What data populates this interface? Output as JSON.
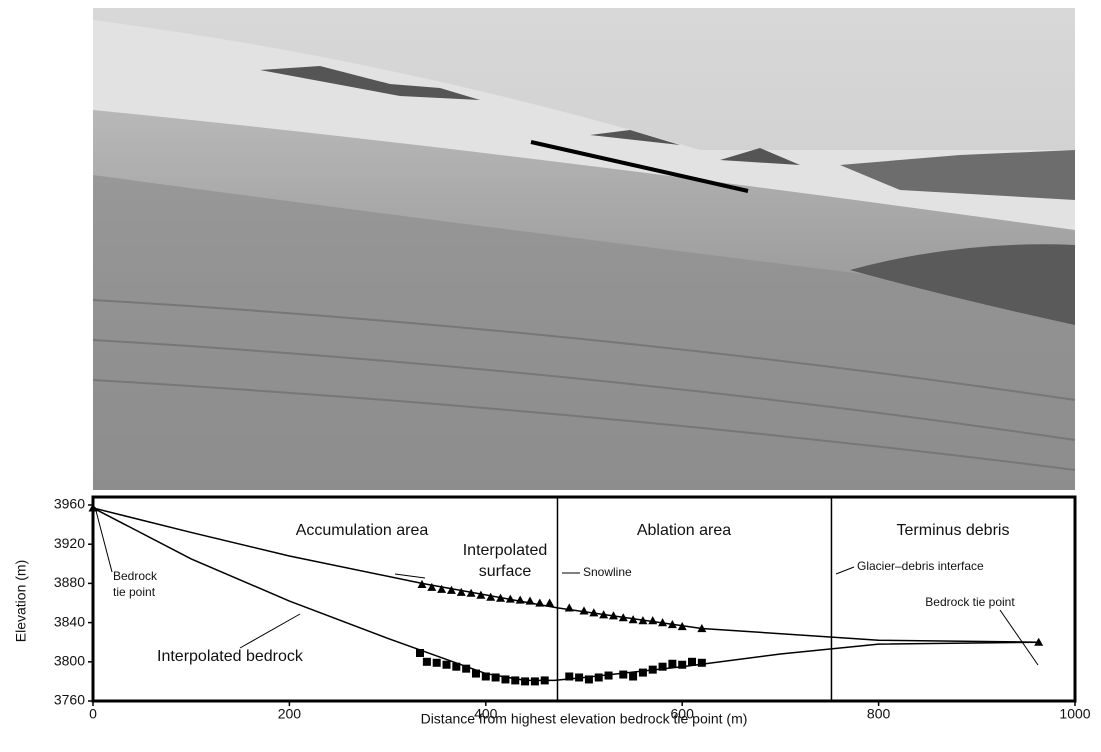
{
  "chart_data": {
    "type": "scatter",
    "xlabel": "Distance from highest elevation bedrock tie point (m)",
    "ylabel": "Elevation (m)",
    "xlim": [
      0,
      1000
    ],
    "xticks": [
      0,
      200,
      400,
      600,
      800,
      1000
    ],
    "ylim": [
      3760,
      3960
    ],
    "yticks": [
      3760,
      3800,
      3840,
      3880,
      3920,
      3960
    ],
    "vlines": [
      473,
      752
    ],
    "annotations": [
      [
        "Accumulation area"
      ],
      [
        "Ablation area"
      ],
      [
        "Terminus debris"
      ],
      [
        "Interpolated",
        "surface"
      ],
      [
        "Snowline"
      ],
      [
        "Glacier–debris interface"
      ],
      [
        "Bedrock",
        "tie point"
      ],
      [
        "Bedrock tie point"
      ],
      [
        "Interpolated bedrock"
      ]
    ],
    "series": [
      {
        "marker": "line",
        "color": "#000000",
        "x": [
          0,
          100,
          200,
          335,
          473,
          620,
          800,
          963
        ],
        "values": [
          3957,
          3932,
          3908,
          3880,
          3855,
          3834,
          3822,
          3820
        ]
      },
      {
        "marker": "line",
        "color": "#000000",
        "x": [
          0,
          100,
          200,
          300,
          400,
          440,
          470,
          500,
          600,
          700,
          800,
          963
        ],
        "values": [
          3957,
          3905,
          3862,
          3824,
          3788,
          3781,
          3781,
          3784,
          3795,
          3808,
          3818,
          3820
        ]
      },
      {
        "marker": "triangle",
        "color": "#000000",
        "x": [
          0,
          335,
          345,
          355,
          365,
          375,
          385,
          395,
          405,
          415,
          425,
          435,
          445,
          455,
          465,
          485,
          500,
          510,
          520,
          530,
          540,
          550,
          560,
          570,
          580,
          590,
          600,
          620,
          963
        ],
        "values": [
          3957,
          3879,
          3876,
          3874,
          3873,
          3871,
          3870,
          3868,
          3866,
          3865,
          3864,
          3863,
          3862,
          3860,
          3860,
          3855,
          3852,
          3850,
          3848,
          3847,
          3845,
          3843,
          3842,
          3842,
          3840,
          3838,
          3836,
          3834,
          3820
        ]
      },
      {
        "marker": "square",
        "color": "#000000",
        "x": [
          333,
          340,
          350,
          360,
          370,
          380,
          390,
          400,
          410,
          420,
          430,
          440,
          450,
          460,
          485,
          495,
          505,
          515,
          525,
          540,
          550,
          560,
          570,
          580,
          590,
          600,
          610,
          620
        ],
        "values": [
          3809,
          3800,
          3799,
          3797,
          3795,
          3793,
          3788,
          3785,
          3784,
          3782,
          3781,
          3780,
          3780,
          3781,
          3785,
          3784,
          3782,
          3784,
          3786,
          3787,
          3785,
          3789,
          3792,
          3795,
          3798,
          3797,
          3800,
          3799
        ]
      }
    ]
  }
}
